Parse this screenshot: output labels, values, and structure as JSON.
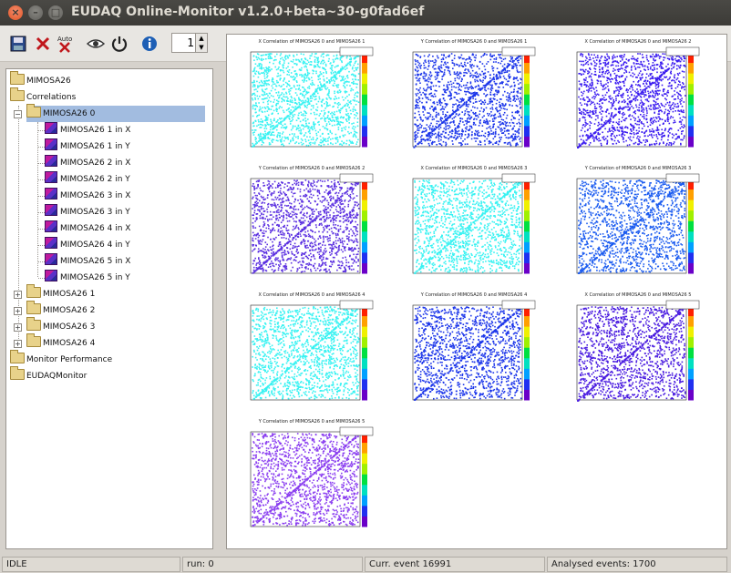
{
  "window": {
    "title": "EUDAQ Online-Monitor v1.2.0+beta~30-g0fad6ef"
  },
  "toolbar": {
    "save": "save-icon",
    "clear": "clear-icon",
    "auto": "Auto",
    "refresh": "eye-icon",
    "quit": "power-icon",
    "info": "info-icon",
    "spin_value": "1"
  },
  "tree": {
    "items": [
      {
        "label": "MIMOSA26"
      },
      {
        "label": "Correlations"
      },
      {
        "label": "MIMOSA26 0"
      },
      {
        "label": "MIMOSA26 1 in X"
      },
      {
        "label": "MIMOSA26 1 in Y"
      },
      {
        "label": "MIMOSA26 2 in X"
      },
      {
        "label": "MIMOSA26 2 in Y"
      },
      {
        "label": "MIMOSA26 3 in X"
      },
      {
        "label": "MIMOSA26 3 in Y"
      },
      {
        "label": "MIMOSA26 4 in X"
      },
      {
        "label": "MIMOSA26 4 in Y"
      },
      {
        "label": "MIMOSA26 5 in X"
      },
      {
        "label": "MIMOSA26 5 in Y"
      },
      {
        "label": "MIMOSA26 1"
      },
      {
        "label": "MIMOSA26 2"
      },
      {
        "label": "MIMOSA26 3"
      },
      {
        "label": "MIMOSA26 4"
      },
      {
        "label": "Monitor Performance"
      },
      {
        "label": "EUDAQMonitor"
      }
    ]
  },
  "plots": [
    {
      "title": "X Correlation of MIMOSA26 0 and MIMOSA26 1",
      "color": "#37f2f2"
    },
    {
      "title": "Y Correlation of MIMOSA26 0 and MIMOSA26 1",
      "color": "#1c36ea"
    },
    {
      "title": "X Correlation of MIMOSA26 0 and MIMOSA26 2",
      "color": "#3b1cf0"
    },
    {
      "title": "Y Correlation of MIMOSA26 0 and MIMOSA26 2",
      "color": "#5b30e0"
    },
    {
      "title": "X Correlation of MIMOSA26 0 and MIMOSA26 3",
      "color": "#37f2f2"
    },
    {
      "title": "Y Correlation of MIMOSA26 0 and MIMOSA26 3",
      "color": "#1c5cf0"
    },
    {
      "title": "X Correlation of MIMOSA26 0 and MIMOSA26 4",
      "color": "#37f2f2"
    },
    {
      "title": "Y Correlation of MIMOSA26 0 and MIMOSA26 4",
      "color": "#1c36ea"
    },
    {
      "title": "X Correlation of MIMOSA26 0 and MIMOSA26 5",
      "color": "#4a1ce0"
    },
    {
      "title": "Y Correlation of MIMOSA26 0 and MIMOSA26 5",
      "color": "#8a3ef0"
    }
  ],
  "status": {
    "state": "IDLE",
    "run": "run: 0",
    "curr_event": "Curr. event 16991",
    "analysed": "Analysed events: 1700"
  }
}
